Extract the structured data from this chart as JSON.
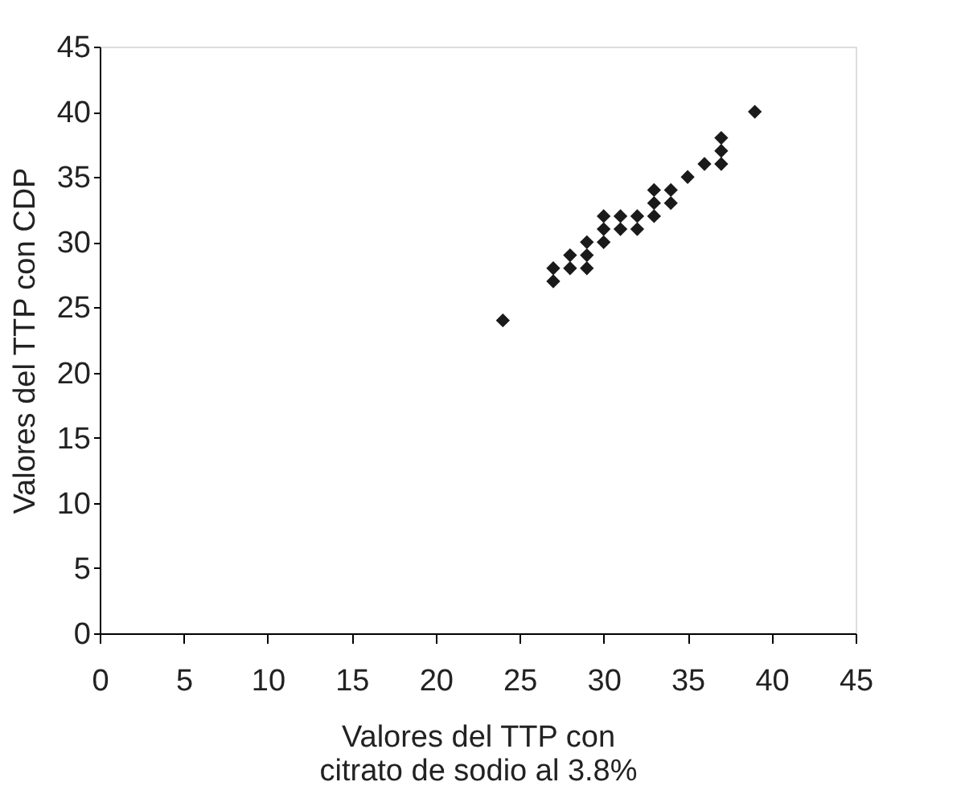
{
  "chart_data": {
    "type": "scatter",
    "xlabel": "Valores del TTP con\ncitrato de sodio al 3.8%",
    "ylabel": "Valores del TTP con CDP",
    "x": [
      24,
      27,
      27,
      28,
      28,
      29,
      29,
      29,
      30,
      30,
      30,
      31,
      31,
      32,
      32,
      33,
      33,
      33,
      34,
      34,
      35,
      36,
      37,
      37,
      37,
      39
    ],
    "series": [
      {
        "color": "#1a1a1a",
        "values": [
          24,
          27,
          28,
          28,
          29,
          28,
          29,
          30,
          30,
          31,
          32,
          31,
          32,
          31,
          32,
          32,
          33,
          34,
          33,
          34,
          35,
          36,
          36,
          37,
          38,
          40
        ]
      }
    ],
    "xlim": [
      0,
      45
    ],
    "ylim": [
      0,
      45
    ],
    "xticks": [
      0,
      5,
      10,
      15,
      20,
      25,
      30,
      35,
      40,
      45
    ],
    "yticks": [
      0,
      5,
      10,
      15,
      20,
      25,
      30,
      35,
      40,
      45
    ],
    "marker": "diamond",
    "grid": false,
    "legend": false
  }
}
